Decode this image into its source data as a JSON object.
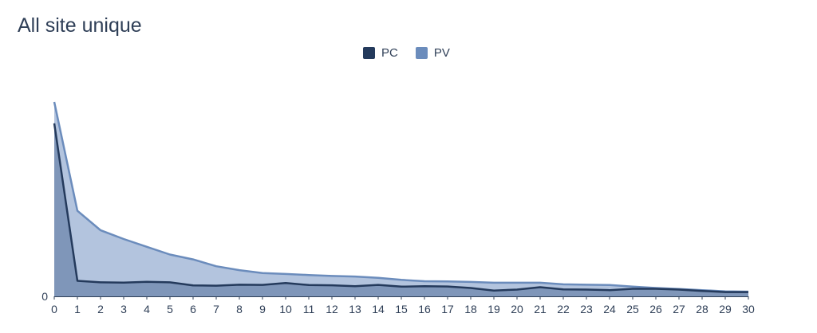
{
  "chart_data": {
    "type": "area",
    "title": "All site unique",
    "xlabel": "",
    "ylabel": "",
    "legend_position": "top-center",
    "x": [
      0,
      1,
      2,
      3,
      4,
      5,
      6,
      7,
      8,
      9,
      10,
      11,
      12,
      13,
      14,
      15,
      16,
      17,
      18,
      19,
      20,
      21,
      22,
      23,
      24,
      25,
      26,
      27,
      28,
      29,
      30
    ],
    "y_ticks": [
      "0"
    ],
    "ylim": [
      0,
      100
    ],
    "grid": false,
    "series": [
      {
        "name": "PV",
        "color": "#6b8cbc",
        "fill": "#b3c4de",
        "values": [
          100,
          44,
          34,
          29.5,
          25.5,
          21.5,
          19,
          15.5,
          13.5,
          12,
          11.5,
          11,
          10.5,
          10.2,
          9.5,
          8.5,
          7.8,
          7.7,
          7.4,
          7,
          7,
          7,
          6.2,
          6,
          5.8,
          5,
          4.3,
          3.8,
          3.2,
          2.6,
          2.4
        ]
      },
      {
        "name": "PC",
        "color": "#243a5c",
        "fill": "#7f96b9",
        "values": [
          89,
          8,
          7.2,
          7.1,
          7.5,
          7.2,
          5.6,
          5.5,
          6,
          5.9,
          6.9,
          5.8,
          5.7,
          5.2,
          5.9,
          5,
          5.2,
          5.1,
          4.3,
          3,
          3.5,
          4.7,
          3.6,
          3.5,
          3.2,
          3.9,
          3.9,
          3.5,
          2.8,
          2.2,
          2.2
        ]
      }
    ]
  }
}
